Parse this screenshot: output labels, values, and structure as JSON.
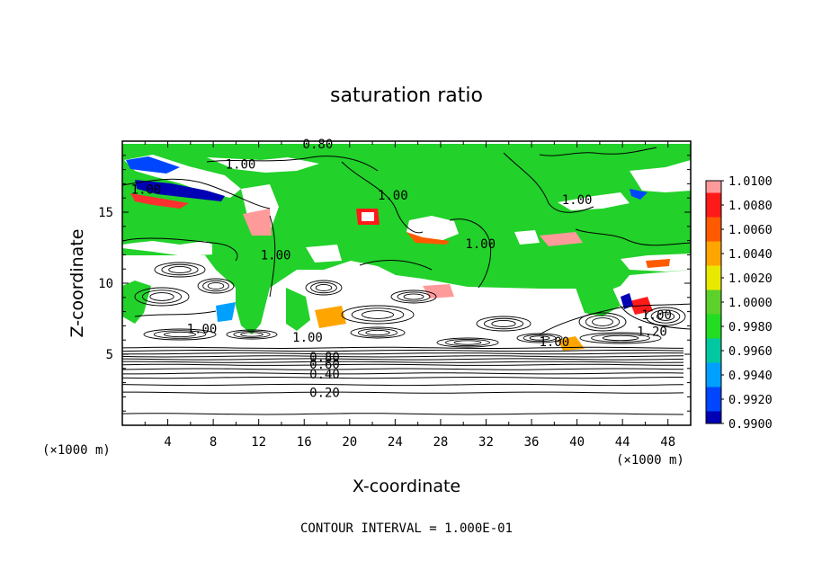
{
  "chart_data": {
    "type": "contour",
    "title": "saturation ratio",
    "xlabel": "X-coordinate",
    "ylabel": "Z-coordinate",
    "x_unit": "(×1000 m)",
    "z_unit": "(×1000 m)",
    "xlim": [
      0,
      50
    ],
    "ylim": [
      0,
      20
    ],
    "x_ticks": [
      4,
      8,
      12,
      16,
      20,
      24,
      28,
      32,
      36,
      40,
      44,
      48
    ],
    "y_ticks": [
      5,
      10,
      15
    ],
    "contour_interval_label": "CONTOUR INTERVAL = 1.000E-01",
    "contour_labels": [
      {
        "text": "0.20",
        "x": 17.8,
        "z": 2.3
      },
      {
        "text": "0.40",
        "x": 17.8,
        "z": 3.6
      },
      {
        "text": "0.60",
        "x": 17.8,
        "z": 4.3
      },
      {
        "text": "0.80",
        "x": 17.8,
        "z": 4.8
      },
      {
        "text": "0.80",
        "x": 17.2,
        "z": 19.8
      },
      {
        "text": "1.00",
        "x": 10.4,
        "z": 18.4
      },
      {
        "text": "1.00",
        "x": 2.1,
        "z": 16.6
      },
      {
        "text": "1.00",
        "x": 23.8,
        "z": 16.2
      },
      {
        "text": "1.00",
        "x": 40.0,
        "z": 15.9
      },
      {
        "text": "1.00",
        "x": 31.5,
        "z": 12.8
      },
      {
        "text": "1.00",
        "x": 13.5,
        "z": 12.0
      },
      {
        "text": "1.00",
        "x": 7.0,
        "z": 6.8
      },
      {
        "text": "1.00",
        "x": 16.3,
        "z": 6.2
      },
      {
        "text": "1.00",
        "x": 38.0,
        "z": 5.9
      },
      {
        "text": "1.00",
        "x": 47.0,
        "z": 7.8
      },
      {
        "text": "1.20",
        "x": 46.6,
        "z": 6.6
      }
    ],
    "colorbar": {
      "levels": [
        "1.0100",
        "1.0080",
        "1.0060",
        "1.0040",
        "1.0020",
        "1.0000",
        "0.9980",
        "0.9960",
        "0.9940",
        "0.9920",
        "0.9900"
      ],
      "colors": [
        "#ff9a9a",
        "#ff1a1a",
        "#ff5a00",
        "#ffa500",
        "#e8e800",
        "#5bd12a",
        "#22dd22",
        "#00c8a0",
        "#00a0ff",
        "#0046ff",
        "#0000b4"
      ],
      "bottom_color": "#7000a0"
    }
  }
}
